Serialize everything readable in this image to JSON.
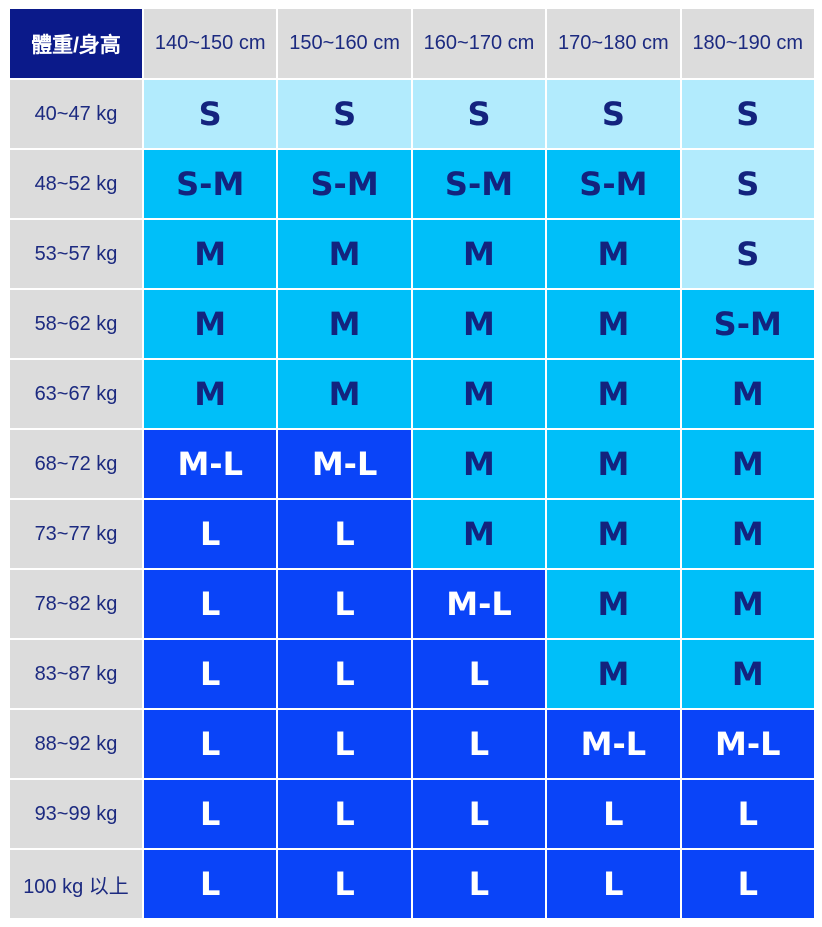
{
  "table": {
    "corner": "體重/身高",
    "columns": [
      "140~150 cm",
      "150~160 cm",
      "160~170 cm",
      "170~180 cm",
      "180~190 cm"
    ],
    "rows": [
      {
        "label": "40~47 kg",
        "cells": [
          "S",
          "S",
          "S",
          "S",
          "S"
        ]
      },
      {
        "label": "48~52 kg",
        "cells": [
          "S-M",
          "S-M",
          "S-M",
          "S-M",
          "S"
        ]
      },
      {
        "label": "53~57 kg",
        "cells": [
          "M",
          "M",
          "M",
          "M",
          "S"
        ]
      },
      {
        "label": "58~62 kg",
        "cells": [
          "M",
          "M",
          "M",
          "M",
          "S-M"
        ]
      },
      {
        "label": "63~67 kg",
        "cells": [
          "M",
          "M",
          "M",
          "M",
          "M"
        ]
      },
      {
        "label": "68~72 kg",
        "cells": [
          "M-L",
          "M-L",
          "M",
          "M",
          "M"
        ]
      },
      {
        "label": "73~77 kg",
        "cells": [
          "L",
          "L",
          "M",
          "M",
          "M"
        ]
      },
      {
        "label": "78~82 kg",
        "cells": [
          "L",
          "L",
          "M-L",
          "M",
          "M"
        ]
      },
      {
        "label": "83~87 kg",
        "cells": [
          "L",
          "L",
          "L",
          "M",
          "M"
        ]
      },
      {
        "label": "88~92 kg",
        "cells": [
          "L",
          "L",
          "L",
          "M-L",
          "M-L"
        ]
      },
      {
        "label": "93~99 kg",
        "cells": [
          "L",
          "L",
          "L",
          "L",
          "L"
        ]
      },
      {
        "label": "100 kg 以上",
        "cells": [
          "L",
          "L",
          "L",
          "L",
          "L"
        ]
      }
    ],
    "cell_colors": {
      "S": "#b2ebfd",
      "S-M": "#00bff9",
      "M": "#00bff9",
      "M-L": "#0a44f8",
      "L": "#0a44f8"
    },
    "text_colors": {
      "S": "#13237e",
      "S-M": "#13237e",
      "M": "#13237e",
      "M-L": "#ffffff",
      "L": "#ffffff"
    }
  }
}
